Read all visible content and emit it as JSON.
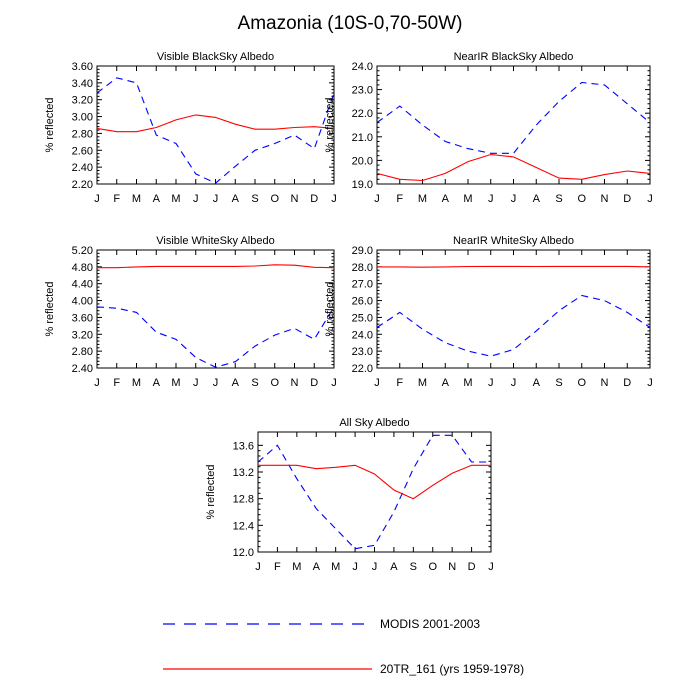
{
  "title": "Amazonia (10S-0,70-50W)",
  "legend": {
    "modis_label": "MODIS 2001-2003",
    "model_label": "20TR_161 (yrs 1959-1978)"
  },
  "colors": {
    "modis": "#0000ff",
    "model": "#ff0000",
    "axis": "#000000"
  },
  "chart_data": [
    {
      "type": "line",
      "title": "Visible BlackSky Albedo",
      "xlabel": "",
      "ylabel": "% reflected",
      "categories": [
        "J",
        "F",
        "M",
        "A",
        "M",
        "J",
        "J",
        "A",
        "S",
        "O",
        "N",
        "D",
        "J"
      ],
      "ylim": [
        2.2,
        3.6
      ],
      "yticks": [
        2.2,
        2.4,
        2.6,
        2.8,
        3.0,
        3.2,
        3.4,
        3.6
      ],
      "ytick_labels": [
        "2.20",
        "2.40",
        "2.60",
        "2.80",
        "3.00",
        "3.20",
        "3.40",
        "3.60"
      ],
      "series": [
        {
          "name": "MODIS 2001-2003",
          "style": "dashed",
          "values": [
            3.28,
            3.46,
            3.4,
            2.78,
            2.68,
            2.32,
            2.21,
            2.41,
            2.6,
            2.68,
            2.78,
            2.62,
            3.28
          ]
        },
        {
          "name": "20TR_161 (yrs 1959-1978)",
          "style": "solid",
          "values": [
            2.86,
            2.82,
            2.82,
            2.87,
            2.96,
            3.02,
            2.99,
            2.91,
            2.85,
            2.85,
            2.87,
            2.88,
            2.86
          ]
        }
      ]
    },
    {
      "type": "line",
      "title": "NearIR BlackSky Albedo",
      "xlabel": "",
      "ylabel": "% reflected",
      "categories": [
        "J",
        "F",
        "M",
        "A",
        "M",
        "J",
        "J",
        "A",
        "S",
        "O",
        "N",
        "D",
        "J"
      ],
      "ylim": [
        19.0,
        24.0
      ],
      "yticks": [
        19.0,
        20.0,
        21.0,
        22.0,
        23.0,
        24.0
      ],
      "ytick_labels": [
        "19.0",
        "20.0",
        "21.0",
        "22.0",
        "23.0",
        "24.0"
      ],
      "series": [
        {
          "name": "MODIS 2001-2003",
          "style": "dashed",
          "values": [
            21.6,
            22.3,
            21.5,
            20.8,
            20.5,
            20.3,
            20.3,
            21.5,
            22.5,
            23.3,
            23.2,
            22.4,
            21.6
          ]
        },
        {
          "name": "20TR_161 (yrs 1959-1978)",
          "style": "solid",
          "values": [
            19.45,
            19.2,
            19.15,
            19.45,
            19.95,
            20.25,
            20.15,
            19.7,
            19.25,
            19.2,
            19.4,
            19.55,
            19.45
          ]
        }
      ]
    },
    {
      "type": "line",
      "title": "Visible WhiteSky Albedo",
      "xlabel": "",
      "ylabel": "% reflected",
      "categories": [
        "J",
        "F",
        "M",
        "A",
        "M",
        "J",
        "J",
        "A",
        "S",
        "O",
        "N",
        "D",
        "J"
      ],
      "ylim": [
        2.4,
        5.2
      ],
      "yticks": [
        2.4,
        2.8,
        3.2,
        3.6,
        4.0,
        4.4,
        4.8,
        5.2
      ],
      "ytick_labels": [
        "2.40",
        "2.80",
        "3.20",
        "3.60",
        "4.00",
        "4.40",
        "4.80",
        "5.20"
      ],
      "series": [
        {
          "name": "MODIS 2001-2003",
          "style": "dashed",
          "values": [
            3.85,
            3.82,
            3.72,
            3.25,
            3.08,
            2.65,
            2.42,
            2.55,
            2.92,
            3.18,
            3.34,
            3.08,
            3.85
          ]
        },
        {
          "name": "20TR_161 (yrs 1959-1978)",
          "style": "solid",
          "values": [
            4.78,
            4.78,
            4.8,
            4.81,
            4.81,
            4.81,
            4.81,
            4.81,
            4.82,
            4.85,
            4.84,
            4.79,
            4.78
          ]
        }
      ]
    },
    {
      "type": "line",
      "title": "NearIR WhiteSky Albedo",
      "xlabel": "",
      "ylabel": "% reflected",
      "categories": [
        "J",
        "F",
        "M",
        "A",
        "M",
        "J",
        "J",
        "A",
        "S",
        "O",
        "N",
        "D",
        "J"
      ],
      "ylim": [
        22.0,
        29.0
      ],
      "yticks": [
        22.0,
        23.0,
        24.0,
        25.0,
        26.0,
        27.0,
        28.0,
        29.0
      ],
      "ytick_labels": [
        "22.0",
        "23.0",
        "24.0",
        "25.0",
        "26.0",
        "27.0",
        "28.0",
        "29.0"
      ],
      "series": [
        {
          "name": "MODIS 2001-2003",
          "style": "dashed",
          "values": [
            24.4,
            25.3,
            24.3,
            23.5,
            23.0,
            22.7,
            23.1,
            24.2,
            25.4,
            26.3,
            26.0,
            25.3,
            24.4
          ]
        },
        {
          "name": "20TR_161 (yrs 1959-1978)",
          "style": "solid",
          "values": [
            28.0,
            28.0,
            27.98,
            28.0,
            28.02,
            28.03,
            28.03,
            28.02,
            28.03,
            28.03,
            28.03,
            28.03,
            28.0
          ]
        }
      ]
    },
    {
      "type": "line",
      "title": "All Sky Albedo",
      "xlabel": "",
      "ylabel": "% reflected",
      "categories": [
        "J",
        "F",
        "M",
        "A",
        "M",
        "J",
        "J",
        "A",
        "S",
        "O",
        "N",
        "D",
        "J"
      ],
      "ylim": [
        12.0,
        13.8
      ],
      "yticks": [
        12.0,
        12.4,
        12.8,
        13.2,
        13.6
      ],
      "ytick_labels": [
        "12.0",
        "12.4",
        "12.8",
        "13.2",
        "13.6"
      ],
      "series": [
        {
          "name": "MODIS 2001-2003",
          "style": "dashed",
          "values": [
            13.35,
            13.6,
            13.1,
            12.65,
            12.35,
            12.05,
            12.1,
            12.6,
            13.25,
            13.75,
            13.75,
            13.35,
            13.35
          ]
        },
        {
          "name": "20TR_161 (yrs 1959-1978)",
          "style": "solid",
          "values": [
            13.3,
            13.3,
            13.3,
            13.25,
            13.27,
            13.3,
            13.17,
            12.93,
            12.8,
            13.0,
            13.18,
            13.3,
            13.3
          ]
        }
      ]
    }
  ]
}
